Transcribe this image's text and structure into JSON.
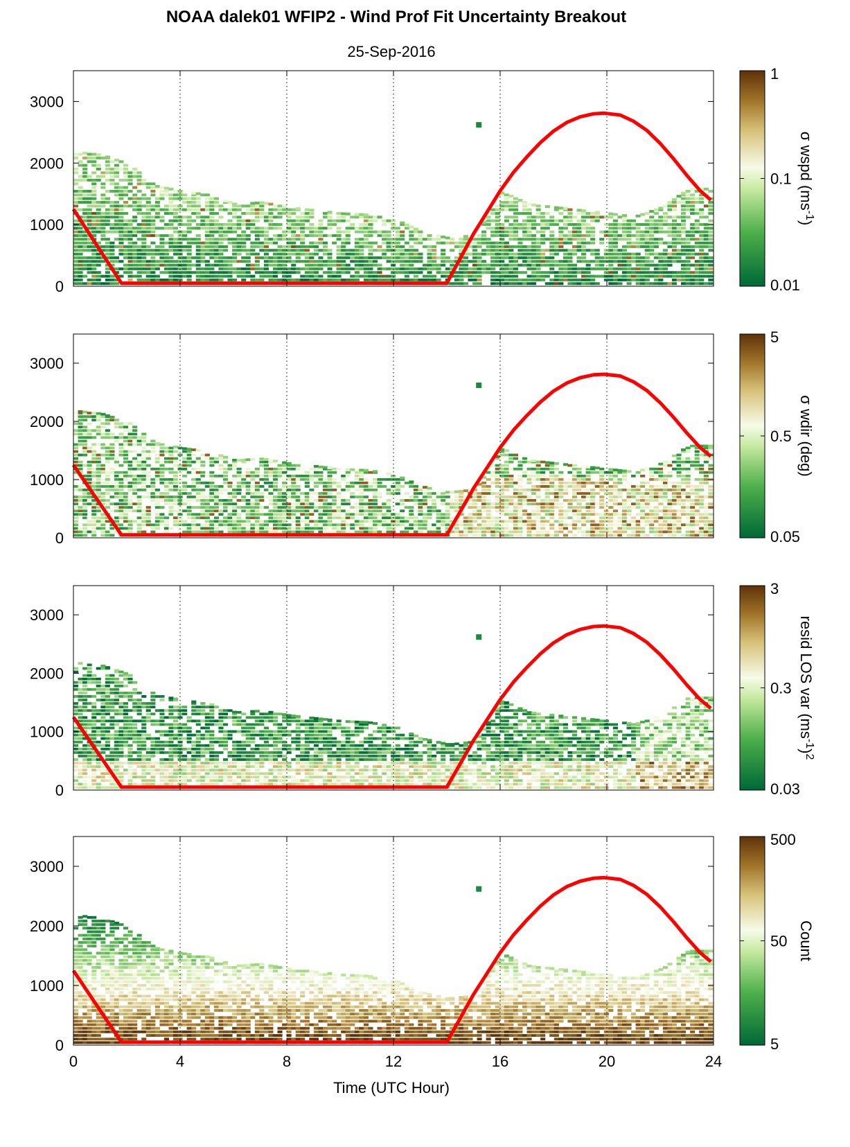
{
  "figure": {
    "title": "NOAA dalek01 WFIP2 - Wind Prof Fit Uncertainty Breakout",
    "subtitle": "25-Sep-2016",
    "xlabel": "Time (UTC Hour)",
    "colors": {
      "line": "#ff0000",
      "cmap_low": "#006837",
      "cmap_mid": "#f7fbe8",
      "cmap_high": "#5e3209"
    }
  },
  "chart_data": [
    {
      "type": "heatmap",
      "colorbar_label": "σ wspd (ms-1)",
      "colorbar_label_parts": [
        "σ wspd (ms",
        "-1",
        ")"
      ],
      "colorbar_scale": "log",
      "colorbar_ticks": [
        "1",
        "0.1",
        "0.01"
      ],
      "xlim": [
        0,
        24
      ],
      "ylim": [
        0,
        3500
      ],
      "xticks": [
        "0",
        "4",
        "8",
        "12",
        "16",
        "20",
        "24"
      ],
      "yticks": [
        "0",
        "1000",
        "2000",
        "3000"
      ],
      "grid": "vertical dotted at x ticks",
      "top_height_m": [
        2200,
        2150,
        2000,
        1650,
        1560,
        1500,
        1350,
        1380,
        1300,
        1250,
        1200,
        1180,
        1100,
        900,
        800,
        850,
        1550,
        1350,
        1300,
        1250,
        1200,
        1150,
        1300,
        1600
      ],
      "median_value": 0.025,
      "line": {
        "x": [
          0,
          1.8,
          14.0,
          14.5,
          15.0,
          15.5,
          16.0,
          16.5,
          17.0,
          17.5,
          18.0,
          18.5,
          19.0,
          19.5,
          19.9,
          20.5,
          21.0,
          21.5,
          22.0,
          22.5,
          23.0,
          23.5,
          23.9
        ],
        "y": [
          1250,
          50,
          50,
          450,
          850,
          1200,
          1550,
          1850,
          2100,
          2330,
          2520,
          2660,
          2750,
          2800,
          2810,
          2780,
          2680,
          2530,
          2320,
          2070,
          1800,
          1550,
          1400
        ]
      },
      "isolated_point": {
        "x": 15.2,
        "y": 2620
      }
    },
    {
      "type": "heatmap",
      "colorbar_label": "σ wdir (deg)",
      "colorbar_label_parts": [
        "σ wdir (deg)"
      ],
      "colorbar_scale": "log",
      "colorbar_ticks": [
        "5",
        "0.5",
        "0.05"
      ],
      "xlim": [
        0,
        24
      ],
      "ylim": [
        0,
        3500
      ],
      "xticks": [
        "0",
        "4",
        "8",
        "12",
        "16",
        "20",
        "24"
      ],
      "yticks": [
        "0",
        "1000",
        "2000",
        "3000"
      ],
      "grid": "vertical dotted at x ticks",
      "top_height_m": [
        2200,
        2150,
        2000,
        1650,
        1560,
        1500,
        1350,
        1380,
        1300,
        1250,
        1200,
        1180,
        1100,
        900,
        800,
        850,
        1550,
        1350,
        1300,
        1250,
        1200,
        1150,
        1300,
        1600
      ],
      "median_value": 0.6,
      "line": {
        "x": [
          0,
          1.8,
          14.0,
          14.5,
          15.0,
          15.5,
          16.0,
          16.5,
          17.0,
          17.5,
          18.0,
          18.5,
          19.0,
          19.5,
          19.9,
          20.5,
          21.0,
          21.5,
          22.0,
          22.5,
          23.0,
          23.5,
          23.9
        ],
        "y": [
          1250,
          50,
          50,
          450,
          850,
          1200,
          1550,
          1850,
          2100,
          2330,
          2520,
          2660,
          2750,
          2800,
          2810,
          2780,
          2680,
          2530,
          2320,
          2070,
          1800,
          1550,
          1400
        ]
      },
      "isolated_point": {
        "x": 15.2,
        "y": 2620
      }
    },
    {
      "type": "heatmap",
      "colorbar_label": "resid LOS var (ms-1)2",
      "colorbar_label_parts": [
        "resid LOS var (ms",
        "-1",
        ")",
        "2"
      ],
      "colorbar_scale": "log",
      "colorbar_ticks": [
        "3",
        "0.3",
        "0.03"
      ],
      "xlim": [
        0,
        24
      ],
      "ylim": [
        0,
        3500
      ],
      "xticks": [
        "0",
        "4",
        "8",
        "12",
        "16",
        "20",
        "24"
      ],
      "yticks": [
        "0",
        "1000",
        "2000",
        "3000"
      ],
      "grid": "vertical dotted at x ticks",
      "top_height_m": [
        2200,
        2150,
        2000,
        1650,
        1560,
        1500,
        1350,
        1380,
        1300,
        1250,
        1200,
        1180,
        1100,
        900,
        800,
        850,
        1550,
        1350,
        1300,
        1250,
        1200,
        1150,
        1300,
        1600
      ],
      "median_value": 0.08,
      "line": {
        "x": [
          0,
          1.8,
          14.0,
          14.5,
          15.0,
          15.5,
          16.0,
          16.5,
          17.0,
          17.5,
          18.0,
          18.5,
          19.0,
          19.5,
          19.9,
          20.5,
          21.0,
          21.5,
          22.0,
          22.5,
          23.0,
          23.5,
          23.9
        ],
        "y": [
          1250,
          50,
          50,
          450,
          850,
          1200,
          1550,
          1850,
          2100,
          2330,
          2520,
          2660,
          2750,
          2800,
          2810,
          2780,
          2680,
          2530,
          2320,
          2070,
          1800,
          1550,
          1400
        ]
      },
      "isolated_point": {
        "x": 15.2,
        "y": 2620
      }
    },
    {
      "type": "heatmap",
      "colorbar_label": "Count",
      "colorbar_label_parts": [
        "Count"
      ],
      "colorbar_scale": "log",
      "colorbar_ticks": [
        "500",
        "50",
        "5"
      ],
      "xlim": [
        0,
        24
      ],
      "ylim": [
        0,
        3500
      ],
      "xticks": [
        "0",
        "4",
        "8",
        "12",
        "16",
        "20",
        "24"
      ],
      "yticks": [
        "0",
        "1000",
        "2000",
        "3000"
      ],
      "grid": "vertical dotted at x ticks",
      "top_height_m": [
        2200,
        2150,
        2000,
        1650,
        1560,
        1500,
        1350,
        1380,
        1300,
        1250,
        1200,
        1180,
        1100,
        900,
        800,
        850,
        1550,
        1350,
        1300,
        1250,
        1200,
        1150,
        1300,
        1600
      ],
      "near_surface_value": 500,
      "top_value": 5,
      "line": {
        "x": [
          0,
          1.8,
          14.0,
          14.5,
          15.0,
          15.5,
          16.0,
          16.5,
          17.0,
          17.5,
          18.0,
          18.5,
          19.0,
          19.5,
          19.9,
          20.5,
          21.0,
          21.5,
          22.0,
          22.5,
          23.0,
          23.5,
          23.9
        ],
        "y": [
          1250,
          50,
          50,
          450,
          850,
          1200,
          1550,
          1850,
          2100,
          2330,
          2520,
          2660,
          2750,
          2800,
          2810,
          2780,
          2680,
          2530,
          2320,
          2070,
          1800,
          1550,
          1400
        ]
      },
      "isolated_point": {
        "x": 15.2,
        "y": 2620
      }
    }
  ]
}
